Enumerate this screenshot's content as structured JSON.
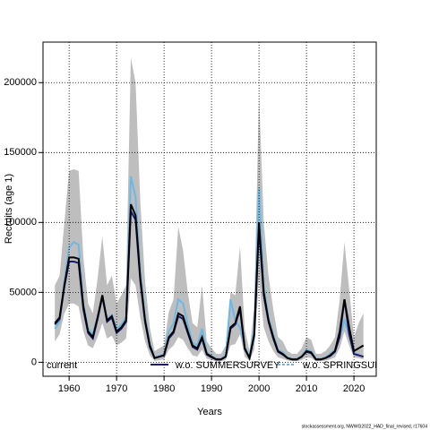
{
  "chart_data": {
    "type": "line",
    "xlabel": "Years",
    "ylabel": "Recruits (age 1)",
    "footer": "stockassessment.org, NWWG2022_HAD_final_revised, r17604",
    "x": [
      1957,
      1958,
      1959,
      1960,
      1961,
      1962,
      1963,
      1964,
      1965,
      1966,
      1967,
      1968,
      1969,
      1970,
      1971,
      1972,
      1973,
      1974,
      1975,
      1976,
      1977,
      1978,
      1979,
      1980,
      1981,
      1982,
      1983,
      1984,
      1985,
      1986,
      1987,
      1988,
      1989,
      1990,
      1991,
      1992,
      1993,
      1994,
      1995,
      1996,
      1997,
      1998,
      1999,
      2000,
      2001,
      2002,
      2003,
      2004,
      2005,
      2006,
      2007,
      2008,
      2009,
      2010,
      2011,
      2012,
      2013,
      2014,
      2015,
      2016,
      2017,
      2018,
      2019,
      2020,
      2021,
      2022
    ],
    "band": {
      "color": "#bebebe",
      "lower": [
        15000,
        20000,
        35000,
        42000,
        42000,
        40000,
        22000,
        12000,
        10000,
        18000,
        28000,
        17000,
        19000,
        12000,
        14000,
        17000,
        60000,
        55000,
        32000,
        15000,
        5000,
        1000,
        1500,
        2000,
        9000,
        12000,
        18000,
        16000,
        10000,
        5000,
        4000,
        9000,
        2500,
        1500,
        700,
        700,
        1500,
        12000,
        13000,
        20000,
        4000,
        1000,
        9000,
        60000,
        25000,
        15000,
        8000,
        3500,
        2500,
        1200,
        800,
        800,
        1500,
        3500,
        3000,
        800,
        800,
        1200,
        2000,
        3500,
        10000,
        22000,
        12000,
        3500,
        3000,
        2000
      ],
      "upper": [
        55000,
        62000,
        100000,
        137000,
        138000,
        137000,
        75000,
        42000,
        35000,
        60000,
        90000,
        55000,
        62000,
        42000,
        48000,
        55000,
        218000,
        200000,
        115000,
        58000,
        25000,
        8000,
        10000,
        12000,
        36000,
        45000,
        97000,
        80000,
        50000,
        28000,
        25000,
        55000,
        15000,
        10000,
        6000,
        6000,
        12000,
        50000,
        48000,
        83000,
        24000,
        8000,
        40000,
        192000,
        100000,
        62000,
        38000,
        18000,
        15000,
        8000,
        6000,
        6000,
        10000,
        18000,
        16000,
        6000,
        6000,
        8000,
        12000,
        18000,
        45000,
        86000,
        52000,
        18000,
        28000,
        35000
      ]
    },
    "series": [
      {
        "name": "current",
        "color": "#000000",
        "values": [
          28000,
          32000,
          55000,
          75000,
          75000,
          74000,
          40000,
          22000,
          18000,
          32000,
          48000,
          30000,
          33000,
          22000,
          25000,
          30000,
          113000,
          105000,
          60000,
          30000,
          12000,
          3000,
          4000,
          5000,
          18000,
          22000,
          35000,
          33000,
          22000,
          12000,
          10000,
          18000,
          6000,
          4000,
          2000,
          2000,
          4000,
          25000,
          28000,
          40000,
          10000,
          3000,
          20000,
          100000,
          50000,
          30000,
          18000,
          8000,
          6000,
          3000,
          2000,
          2000,
          4000,
          8000,
          7000,
          2000,
          2000,
          3000,
          5000,
          8000,
          22000,
          45000,
          25000,
          8000,
          10000,
          12000
        ]
      },
      {
        "name": "w.o. SUMMERSURVEY",
        "color": "#1a1a6e",
        "values": [
          27000,
          31000,
          54000,
          72000,
          72000,
          71000,
          38000,
          21000,
          17000,
          31000,
          47000,
          29000,
          32000,
          21000,
          24000,
          29000,
          108000,
          102000,
          58000,
          29000,
          11000,
          3000,
          4000,
          5000,
          17000,
          21000,
          33000,
          31000,
          21000,
          11000,
          9000,
          17000,
          5500,
          3500,
          2000,
          2000,
          4000,
          24000,
          27000,
          38000,
          9500,
          3000,
          19000,
          96000,
          48000,
          29000,
          17000,
          7500,
          5500,
          3000,
          2000,
          2000,
          4000,
          7500,
          6500,
          2000,
          2000,
          3000,
          4500,
          7500,
          18000,
          45000,
          20000,
          6000,
          5000,
          4000
        ]
      },
      {
        "name": "w.o. SPRINGSUF",
        "color": "#6cb8e6",
        "dashed": true,
        "values": [
          24000,
          29000,
          58000,
          82000,
          86000,
          84000,
          42000,
          24000,
          20000,
          33000,
          46000,
          31000,
          34000,
          24000,
          27000,
          32000,
          133000,
          118000,
          65000,
          33000,
          13000,
          3500,
          4500,
          6000,
          22000,
          28000,
          45000,
          42000,
          27000,
          14000,
          12000,
          24000,
          7000,
          4500,
          2500,
          2500,
          5000,
          45000,
          30000,
          25000,
          11000,
          3500,
          24000,
          125000,
          55000,
          32000,
          20000,
          9000,
          7000,
          3500,
          2500,
          2500,
          4500,
          9000,
          8000,
          2500,
          2500,
          3500,
          6000,
          9000,
          18000,
          30000,
          20000,
          7000,
          5000,
          4000
        ]
      }
    ],
    "xlim": [
      1954.5,
      2024.7
    ],
    "ylim": [
      -10000,
      229000
    ],
    "xticks": [
      1960,
      1970,
      1980,
      1990,
      2000,
      2010,
      2020
    ],
    "yticks": [
      0,
      50000,
      100000,
      150000,
      200000
    ],
    "grid": true,
    "legend": "bottom"
  }
}
